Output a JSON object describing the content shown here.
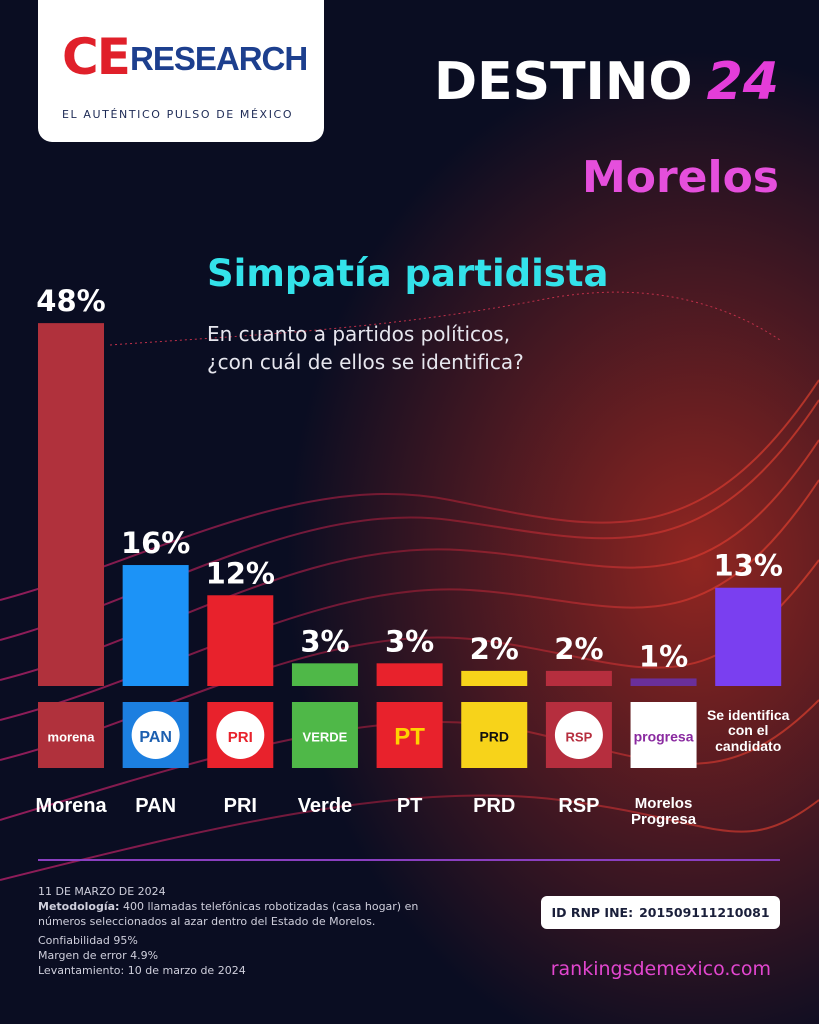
{
  "header": {
    "brand_ce": "CE",
    "brand_research": "RESEARCH",
    "tagline": "EL AUTÉNTICO PULSO DE MÉXICO",
    "campaign": "DESTINO",
    "campaign_number": "24",
    "state": "Morelos"
  },
  "chart_data": {
    "type": "bar",
    "title": "Simpatía partidista",
    "subtitle": [
      "En cuanto a partidos políticos,",
      "¿con cuál de ellos se identifica?"
    ],
    "categories": [
      "Morena",
      "PAN",
      "PRI",
      "Verde",
      "PT",
      "PRD",
      "RSP",
      "Morelos Progresa",
      "Se identifica con el candidato"
    ],
    "values": [
      48,
      16,
      12,
      3,
      3,
      2,
      2,
      1,
      13
    ],
    "value_labels": [
      "48%",
      "16%",
      "12%",
      "3%",
      "3%",
      "2%",
      "2%",
      "1%",
      "13%"
    ],
    "colors": [
      "#b0313c",
      "#1c93f7",
      "#e8222c",
      "#4fb848",
      "#e8222c",
      "#f7d31a",
      "#b62e3e",
      "#6a2f9a",
      "#7a3ff0"
    ]
  },
  "logos": [
    "morena",
    "PAN",
    "PRI",
    "VERDE",
    "PT",
    "PRD",
    "RSP",
    "progresa"
  ],
  "footer": {
    "date": "11 DE MARZO DE 2024",
    "method_label": "Metodología:",
    "method_text": "400 llamadas telefónicas robotizadas (casa hogar) en números seleccionados al azar dentro del Estado de Morelos.",
    "confidence": "Confiabilidad 95%",
    "margin": "Margen de error 4.9%",
    "fieldwork": "Levantamiento: 10 de marzo de 2024",
    "id_label": "ID RNP INE:",
    "id_value": "201509111210081",
    "url": "rankingsdemexico.com"
  }
}
